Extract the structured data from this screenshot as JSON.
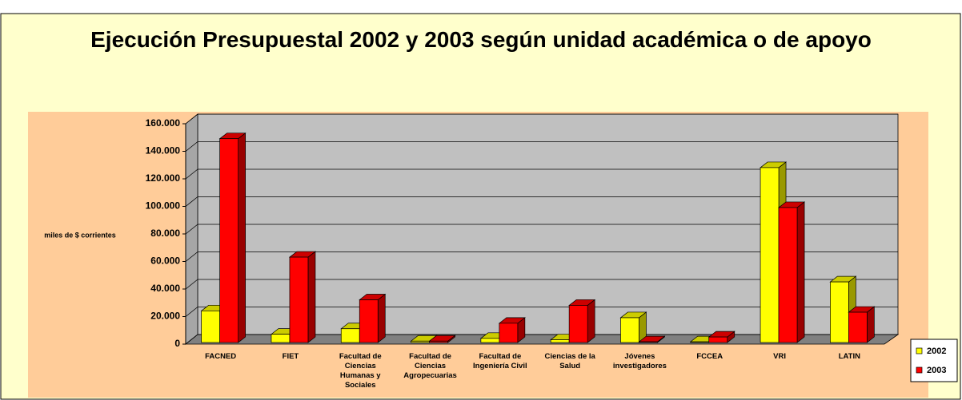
{
  "chart_data": {
    "type": "bar3d",
    "title": "Ejecución Presupuestal 2002 y 2003 según unidad académica o de apoyo",
    "y_label": "miles de $ corrientes",
    "categories": [
      "FACNED",
      "FIET",
      "Facultad de Ciencias Humanas y Sociales",
      "Facultad de Ciencias Agropecuarias",
      "Facultad de Ingeniería Civil",
      "Ciencias de la Salud",
      "Jóvenes investigadores",
      "FCCEA",
      "VRI",
      "LATIN"
    ],
    "series": [
      {
        "name": "2002",
        "color": "#ffff00",
        "values": [
          23000,
          6000,
          10000,
          1000,
          3000,
          2000,
          18000,
          500,
          127000,
          44000
        ]
      },
      {
        "name": "2003",
        "color": "#ff0000",
        "values": [
          148000,
          62000,
          31000,
          1000,
          14000,
          27000,
          500,
          4000,
          98000,
          22000
        ]
      }
    ],
    "ylim": [
      0,
      160000
    ],
    "yticks": [
      {
        "value": 0,
        "label": "0"
      },
      {
        "value": 20000,
        "label": "20.000"
      },
      {
        "value": 40000,
        "label": "40.000"
      },
      {
        "value": 60000,
        "label": "60.000"
      },
      {
        "value": 80000,
        "label": "80.000"
      },
      {
        "value": 100000,
        "label": "100.000"
      },
      {
        "value": 120000,
        "label": "120.000"
      },
      {
        "value": 140000,
        "label": "140.000"
      },
      {
        "value": 160000,
        "label": "160.000"
      }
    ],
    "grid": true,
    "legend": "right"
  }
}
